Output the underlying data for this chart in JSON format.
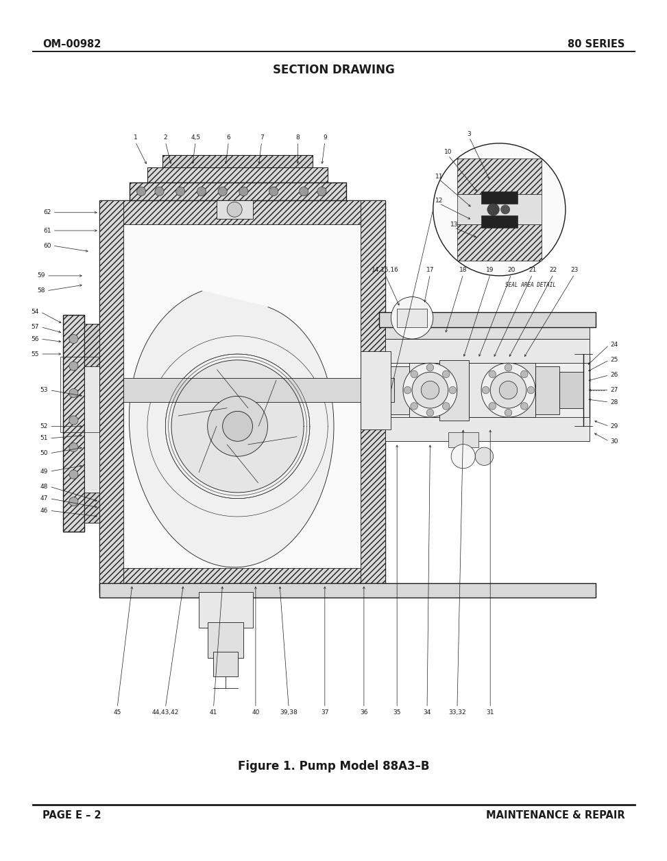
{
  "page_width": 9.54,
  "page_height": 12.35,
  "bg_color": "#ffffff",
  "header_left": "OM–00982",
  "header_right": "80 SERIES",
  "section_title": "SECTION DRAWING",
  "figure_caption": "Figure 1. Pump Model 88A3–B",
  "footer_left": "PAGE E – 2",
  "footer_right": "MAINTENANCE & REPAIR",
  "dk": "#1a1a1a",
  "lw1": 0.6,
  "lw2": 1.0,
  "lw3": 1.4
}
